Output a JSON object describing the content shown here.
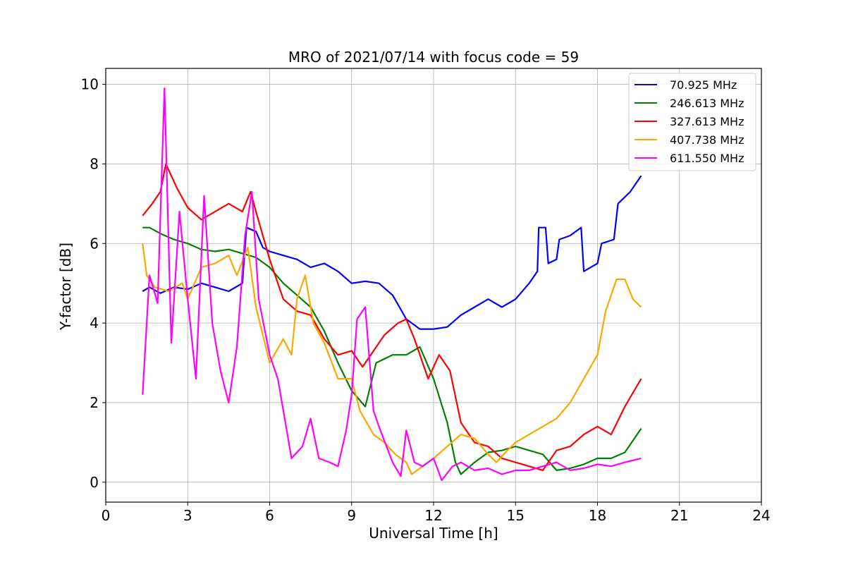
{
  "chart_data": {
    "type": "line",
    "title": "MRO of 2021/07/14 with focus code = 59",
    "xlabel": "Universal Time [h]",
    "ylabel": "Y-factor [dB]",
    "xlim": [
      0,
      24
    ],
    "ylim": [
      -0.5,
      10.4
    ],
    "xticks": [
      0,
      3,
      6,
      9,
      12,
      15,
      18,
      21,
      24
    ],
    "yticks": [
      0,
      2,
      4,
      6,
      8,
      10
    ],
    "grid": true,
    "legend_position": "top-right",
    "series": [
      {
        "name": "70.925 MHz",
        "color": "#0000ff",
        "points": [
          [
            1.35,
            4.8
          ],
          [
            1.6,
            4.9
          ],
          [
            2.0,
            4.75
          ],
          [
            2.5,
            4.9
          ],
          [
            3.0,
            4.85
          ],
          [
            3.5,
            5.0
          ],
          [
            4.0,
            4.9
          ],
          [
            4.5,
            4.8
          ],
          [
            5.0,
            5.0
          ],
          [
            5.15,
            6.4
          ],
          [
            5.5,
            6.3
          ],
          [
            5.75,
            5.9
          ],
          [
            6.0,
            5.8
          ],
          [
            6.5,
            5.7
          ],
          [
            7.0,
            5.6
          ],
          [
            7.5,
            5.4
          ],
          [
            8.0,
            5.5
          ],
          [
            8.5,
            5.3
          ],
          [
            9.0,
            5.0
          ],
          [
            9.5,
            5.05
          ],
          [
            10.0,
            5.0
          ],
          [
            10.5,
            4.7
          ],
          [
            11.0,
            4.1
          ],
          [
            11.5,
            3.85
          ],
          [
            12.0,
            3.85
          ],
          [
            12.5,
            3.9
          ],
          [
            13.0,
            4.2
          ],
          [
            13.5,
            4.4
          ],
          [
            14.0,
            4.6
          ],
          [
            14.5,
            4.4
          ],
          [
            15.0,
            4.6
          ],
          [
            15.5,
            5.0
          ],
          [
            15.8,
            5.3
          ],
          [
            15.85,
            6.4
          ],
          [
            16.1,
            6.4
          ],
          [
            16.2,
            5.5
          ],
          [
            16.5,
            5.6
          ],
          [
            16.6,
            6.1
          ],
          [
            17.0,
            6.2
          ],
          [
            17.4,
            6.4
          ],
          [
            17.5,
            5.3
          ],
          [
            18.0,
            5.5
          ],
          [
            18.15,
            6.0
          ],
          [
            18.6,
            6.1
          ],
          [
            18.75,
            7.0
          ],
          [
            19.2,
            7.3
          ],
          [
            19.6,
            7.7
          ]
        ]
      },
      {
        "name": "246.613 MHz",
        "color": "#008000",
        "points": [
          [
            1.35,
            6.4
          ],
          [
            1.6,
            6.4
          ],
          [
            2.0,
            6.25
          ],
          [
            2.5,
            6.1
          ],
          [
            3.0,
            6.0
          ],
          [
            3.5,
            5.85
          ],
          [
            4.0,
            5.8
          ],
          [
            4.5,
            5.85
          ],
          [
            5.0,
            5.75
          ],
          [
            5.5,
            5.65
          ],
          [
            6.0,
            5.4
          ],
          [
            6.5,
            5.0
          ],
          [
            7.0,
            4.7
          ],
          [
            7.5,
            4.4
          ],
          [
            8.0,
            3.8
          ],
          [
            8.5,
            3.0
          ],
          [
            9.0,
            2.3
          ],
          [
            9.5,
            1.9
          ],
          [
            9.9,
            3.0
          ],
          [
            10.5,
            3.2
          ],
          [
            11.0,
            3.2
          ],
          [
            11.5,
            3.4
          ],
          [
            12.0,
            2.6
          ],
          [
            12.5,
            1.5
          ],
          [
            12.8,
            0.5
          ],
          [
            13.0,
            0.2
          ],
          [
            13.5,
            0.5
          ],
          [
            14.0,
            0.75
          ],
          [
            14.5,
            0.8
          ],
          [
            15.0,
            0.9
          ],
          [
            15.5,
            0.8
          ],
          [
            16.0,
            0.7
          ],
          [
            16.5,
            0.3
          ],
          [
            17.0,
            0.35
          ],
          [
            17.5,
            0.45
          ],
          [
            18.0,
            0.6
          ],
          [
            18.5,
            0.6
          ],
          [
            19.0,
            0.75
          ],
          [
            19.6,
            1.35
          ]
        ]
      },
      {
        "name": "327.613 MHz",
        "color": "#ff0000",
        "points": [
          [
            1.35,
            6.7
          ],
          [
            1.7,
            7.0
          ],
          [
            2.0,
            7.3
          ],
          [
            2.2,
            8.0
          ],
          [
            2.6,
            7.4
          ],
          [
            3.0,
            6.9
          ],
          [
            3.5,
            6.6
          ],
          [
            4.0,
            6.8
          ],
          [
            4.5,
            7.0
          ],
          [
            5.0,
            6.8
          ],
          [
            5.3,
            7.3
          ],
          [
            5.5,
            6.8
          ],
          [
            6.0,
            5.6
          ],
          [
            6.5,
            4.6
          ],
          [
            7.0,
            4.3
          ],
          [
            7.5,
            4.2
          ],
          [
            8.0,
            3.6
          ],
          [
            8.5,
            3.2
          ],
          [
            9.0,
            3.3
          ],
          [
            9.4,
            2.9
          ],
          [
            9.8,
            3.3
          ],
          [
            10.2,
            3.7
          ],
          [
            10.7,
            4.0
          ],
          [
            11.0,
            4.1
          ],
          [
            11.3,
            3.6
          ],
          [
            11.8,
            2.6
          ],
          [
            12.2,
            3.2
          ],
          [
            12.6,
            2.8
          ],
          [
            13.0,
            1.5
          ],
          [
            13.5,
            1.0
          ],
          [
            14.0,
            0.9
          ],
          [
            14.5,
            0.6
          ],
          [
            15.0,
            0.5
          ],
          [
            15.5,
            0.4
          ],
          [
            16.0,
            0.3
          ],
          [
            16.5,
            0.8
          ],
          [
            17.0,
            0.9
          ],
          [
            17.5,
            1.2
          ],
          [
            18.0,
            1.4
          ],
          [
            18.5,
            1.2
          ],
          [
            19.0,
            1.9
          ],
          [
            19.6,
            2.6
          ]
        ]
      },
      {
        "name": "407.738 MHz",
        "color": "#ffa500",
        "points": [
          [
            1.35,
            6.0
          ],
          [
            1.5,
            5.2
          ],
          [
            1.8,
            4.9
          ],
          [
            2.3,
            4.8
          ],
          [
            2.8,
            5.0
          ],
          [
            3.0,
            4.6
          ],
          [
            3.5,
            5.4
          ],
          [
            4.0,
            5.5
          ],
          [
            4.5,
            5.7
          ],
          [
            4.8,
            5.2
          ],
          [
            5.2,
            5.9
          ],
          [
            5.5,
            4.4
          ],
          [
            6.0,
            3.0
          ],
          [
            6.5,
            3.6
          ],
          [
            6.8,
            3.2
          ],
          [
            7.0,
            4.6
          ],
          [
            7.3,
            5.2
          ],
          [
            7.6,
            4.0
          ],
          [
            8.0,
            3.5
          ],
          [
            8.5,
            2.6
          ],
          [
            9.0,
            2.6
          ],
          [
            9.3,
            1.8
          ],
          [
            9.8,
            1.2
          ],
          [
            10.2,
            1.0
          ],
          [
            10.6,
            0.7
          ],
          [
            11.0,
            0.5
          ],
          [
            11.2,
            0.2
          ],
          [
            11.6,
            0.4
          ],
          [
            12.0,
            0.6
          ],
          [
            12.5,
            0.9
          ],
          [
            13.0,
            1.2
          ],
          [
            13.5,
            1.1
          ],
          [
            14.0,
            0.7
          ],
          [
            14.3,
            0.5
          ],
          [
            14.7,
            0.8
          ],
          [
            15.0,
            1.0
          ],
          [
            15.5,
            1.2
          ],
          [
            16.0,
            1.4
          ],
          [
            16.5,
            1.6
          ],
          [
            17.0,
            2.0
          ],
          [
            17.5,
            2.6
          ],
          [
            18.0,
            3.2
          ],
          [
            18.3,
            4.3
          ],
          [
            18.7,
            5.1
          ],
          [
            19.0,
            5.1
          ],
          [
            19.3,
            4.6
          ],
          [
            19.6,
            4.4
          ]
        ]
      },
      {
        "name": "611.550 MHz",
        "color": "#ff00ff",
        "points": [
          [
            1.35,
            2.2
          ],
          [
            1.6,
            5.2
          ],
          [
            1.9,
            4.5
          ],
          [
            2.15,
            9.9
          ],
          [
            2.4,
            3.5
          ],
          [
            2.7,
            6.8
          ],
          [
            3.0,
            4.6
          ],
          [
            3.3,
            2.6
          ],
          [
            3.6,
            7.2
          ],
          [
            3.9,
            4.0
          ],
          [
            4.2,
            2.8
          ],
          [
            4.5,
            2.0
          ],
          [
            4.8,
            3.4
          ],
          [
            5.1,
            6.2
          ],
          [
            5.35,
            7.3
          ],
          [
            5.6,
            4.6
          ],
          [
            6.0,
            3.2
          ],
          [
            6.3,
            2.6
          ],
          [
            6.5,
            1.8
          ],
          [
            6.8,
            0.6
          ],
          [
            7.2,
            0.9
          ],
          [
            7.5,
            1.6
          ],
          [
            7.8,
            0.6
          ],
          [
            8.2,
            0.5
          ],
          [
            8.5,
            0.4
          ],
          [
            8.8,
            1.3
          ],
          [
            9.0,
            2.2
          ],
          [
            9.2,
            4.1
          ],
          [
            9.5,
            4.4
          ],
          [
            9.8,
            1.8
          ],
          [
            10.0,
            1.4
          ],
          [
            10.5,
            0.5
          ],
          [
            10.8,
            0.15
          ],
          [
            11.0,
            1.3
          ],
          [
            11.3,
            0.5
          ],
          [
            11.6,
            0.4
          ],
          [
            12.0,
            0.6
          ],
          [
            12.3,
            0.05
          ],
          [
            12.7,
            0.4
          ],
          [
            13.0,
            0.5
          ],
          [
            13.5,
            0.3
          ],
          [
            14.0,
            0.35
          ],
          [
            14.5,
            0.2
          ],
          [
            15.0,
            0.3
          ],
          [
            15.5,
            0.3
          ],
          [
            16.0,
            0.4
          ],
          [
            16.5,
            0.5
          ],
          [
            17.0,
            0.3
          ],
          [
            17.5,
            0.35
          ],
          [
            18.0,
            0.45
          ],
          [
            18.5,
            0.4
          ],
          [
            19.0,
            0.5
          ],
          [
            19.6,
            0.6
          ]
        ]
      }
    ]
  }
}
